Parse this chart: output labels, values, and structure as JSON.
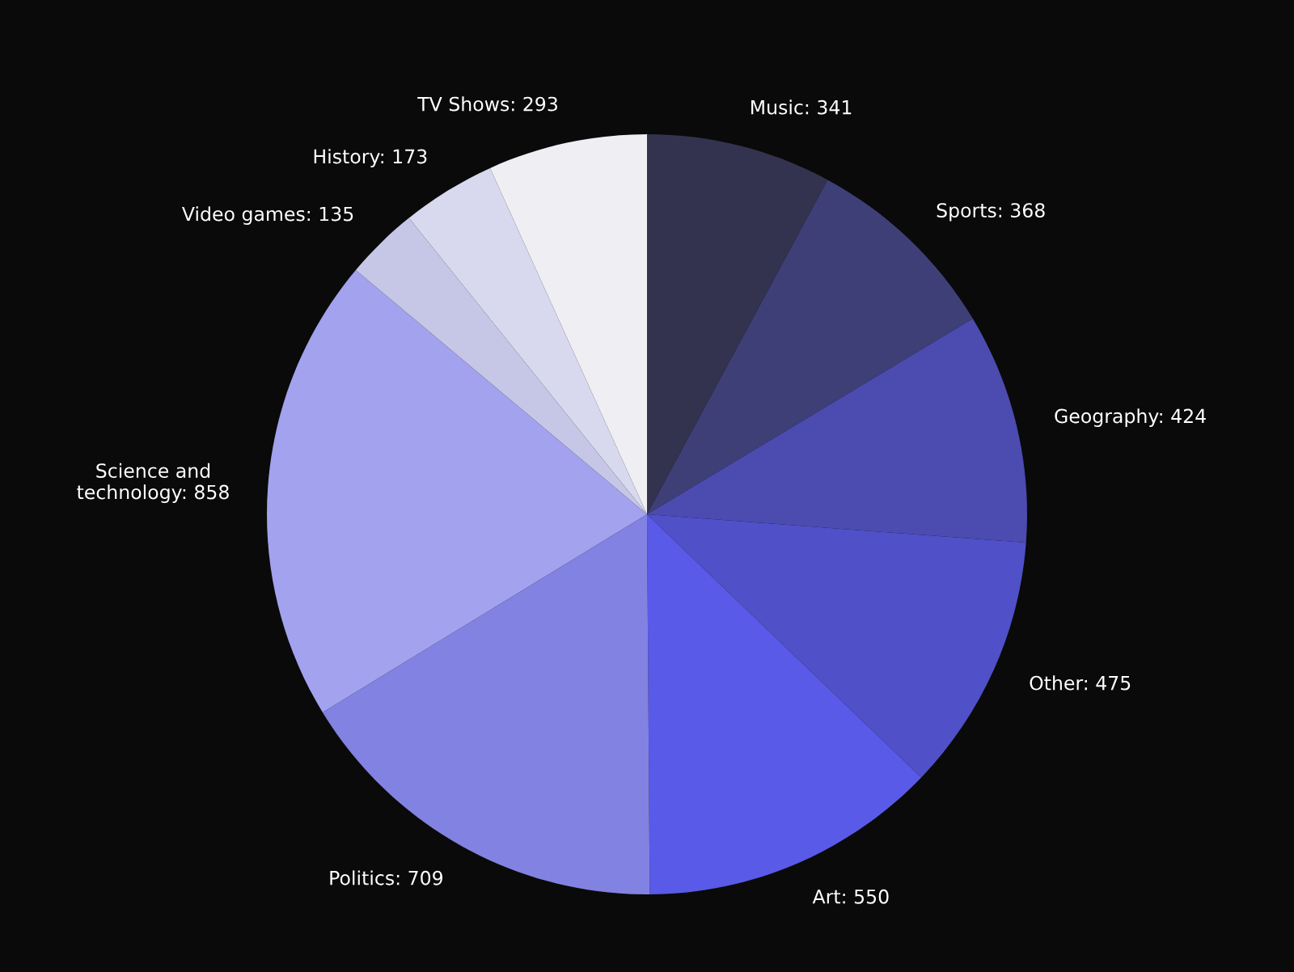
{
  "chart_data": {
    "type": "pie",
    "categories": [
      "Music: 341",
      "Sports: 368",
      "Geography: 424",
      "Other: 475",
      "Art: 550",
      "Politics: 709",
      "Science and technology: 858",
      "Video games: 135",
      "History: 173",
      "TV Shows: 293"
    ],
    "values": [
      341,
      368,
      424,
      475,
      550,
      709,
      858,
      135,
      173,
      293
    ],
    "colors": [
      "#33334f",
      "#3f3f78",
      "#4b4bb0",
      "#5050c8",
      "#5a5ae8",
      "#8282e2",
      "#a2a2ee",
      "#c6c6e6",
      "#d8d8ee",
      "#eeeef3"
    ],
    "legend": false
  }
}
